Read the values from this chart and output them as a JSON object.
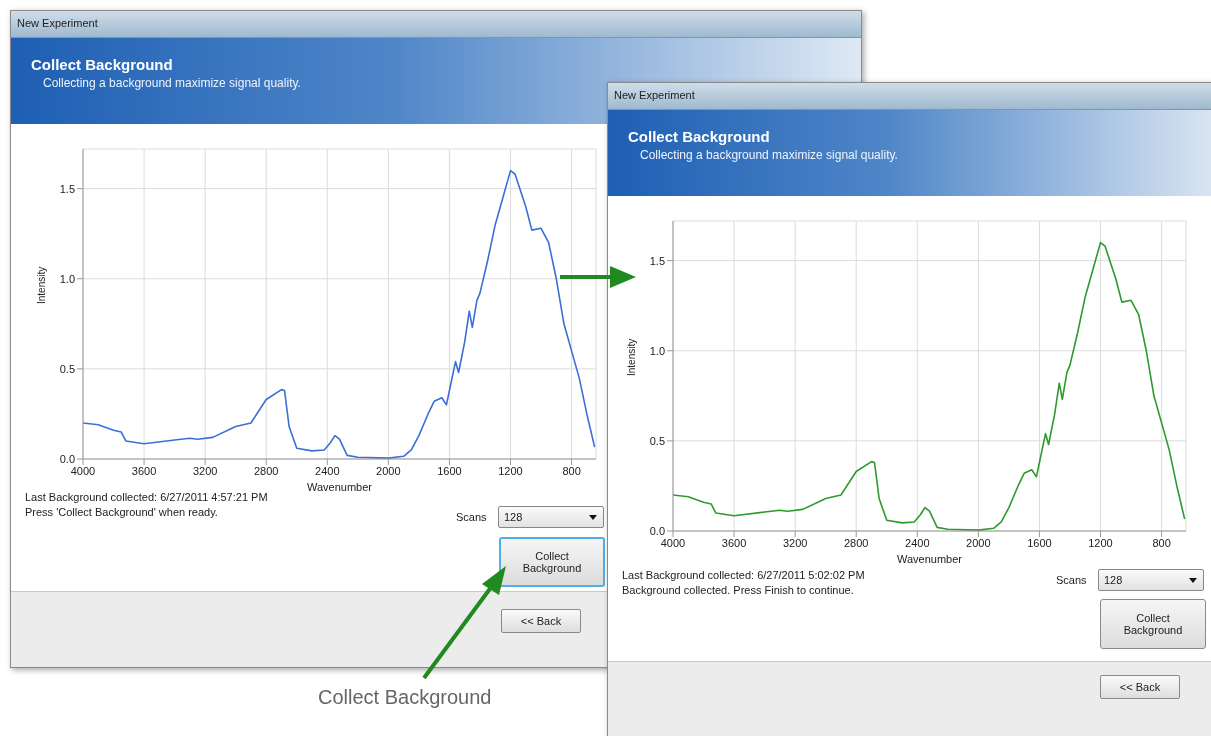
{
  "chart_data": [
    {
      "type": "line",
      "title": "Collect Background",
      "subtitle": "Collecting a background maximize signal quality.",
      "xlabel": "Wavenumber",
      "ylabel": "Intensity",
      "xlim": [
        4000,
        640
      ],
      "ylim": [
        0,
        1.72
      ],
      "xticks": [
        4000,
        3600,
        3200,
        2800,
        2400,
        2000,
        1600,
        1200,
        800
      ],
      "yticks": [
        {
          "value": 0,
          "label": "0.0"
        },
        {
          "value": 0.5,
          "label": "0.5"
        },
        {
          "value": 1,
          "label": "1.0"
        },
        {
          "value": 1.5,
          "label": "1.5"
        }
      ],
      "grid": true,
      "annotations": [
        "New Experiment",
        "Last Background collected: 6/27/2011 4:57:21 PM",
        "Press 'Collect Background' when ready.",
        "Scans",
        "128",
        "Collect Background",
        "<< Back",
        "Collect Background"
      ],
      "x": [
        4000,
        3900,
        3800,
        3750,
        3720,
        3600,
        3400,
        3300,
        3250,
        3150,
        3000,
        2900,
        2800,
        2700,
        2680,
        2650,
        2600,
        2500,
        2420,
        2380,
        2350,
        2320,
        2270,
        2200,
        2000,
        1900,
        1850,
        1800,
        1740,
        1700,
        1650,
        1620,
        1600,
        1560,
        1540,
        1500,
        1470,
        1450,
        1420,
        1400,
        1350,
        1300,
        1250,
        1200,
        1170,
        1100,
        1060,
        1000,
        950,
        900,
        850,
        800,
        750,
        700,
        650
      ],
      "series": [
        {
          "color": "#3b6fd6",
          "values": [
            0.2,
            0.19,
            0.16,
            0.15,
            0.1,
            0.085,
            0.105,
            0.115,
            0.11,
            0.12,
            0.18,
            0.2,
            0.33,
            0.385,
            0.38,
            0.18,
            0.06,
            0.045,
            0.05,
            0.09,
            0.13,
            0.11,
            0.02,
            0.01,
            0.005,
            0.015,
            0.05,
            0.13,
            0.25,
            0.32,
            0.34,
            0.3,
            0.38,
            0.54,
            0.48,
            0.65,
            0.82,
            0.73,
            0.88,
            0.92,
            1.1,
            1.3,
            1.45,
            1.6,
            1.58,
            1.4,
            1.27,
            1.28,
            1.2,
            1.0,
            0.75,
            0.6,
            0.45,
            0.25,
            0.07
          ]
        }
      ]
    },
    {
      "type": "line",
      "title": "Collect Background",
      "subtitle": "Collecting a background maximize signal quality.",
      "xlabel": "Wavenumber",
      "ylabel": "Intensity",
      "xlim": [
        4000,
        640
      ],
      "ylim": [
        0,
        1.72
      ],
      "xticks": [
        4000,
        3600,
        3200,
        2800,
        2400,
        2000,
        1600,
        1200,
        800
      ],
      "yticks": [
        {
          "value": 0,
          "label": "0.0"
        },
        {
          "value": 0.5,
          "label": "0.5"
        },
        {
          "value": 1,
          "label": "1.0"
        },
        {
          "value": 1.5,
          "label": "1.5"
        }
      ],
      "grid": true,
      "annotations": [
        "New Experiment",
        "Last Background collected: 6/27/2011 5:02:02 PM",
        "Background collected.  Press Finish to continue.",
        "Scans",
        "128",
        "Collect Background",
        "<< Back"
      ],
      "x": [
        4000,
        3900,
        3800,
        3750,
        3720,
        3600,
        3400,
        3300,
        3250,
        3150,
        3000,
        2900,
        2800,
        2700,
        2680,
        2650,
        2600,
        2500,
        2420,
        2380,
        2350,
        2320,
        2270,
        2200,
        2000,
        1900,
        1850,
        1800,
        1740,
        1700,
        1650,
        1620,
        1600,
        1560,
        1540,
        1500,
        1470,
        1450,
        1420,
        1400,
        1350,
        1300,
        1250,
        1200,
        1170,
        1100,
        1060,
        1000,
        950,
        900,
        850,
        800,
        750,
        700,
        650
      ],
      "series": [
        {
          "color": "#2e9a2e",
          "values": [
            0.2,
            0.19,
            0.16,
            0.15,
            0.1,
            0.085,
            0.105,
            0.115,
            0.11,
            0.12,
            0.18,
            0.2,
            0.33,
            0.385,
            0.38,
            0.18,
            0.06,
            0.045,
            0.05,
            0.09,
            0.13,
            0.11,
            0.02,
            0.01,
            0.005,
            0.015,
            0.05,
            0.13,
            0.25,
            0.32,
            0.34,
            0.3,
            0.38,
            0.54,
            0.48,
            0.65,
            0.82,
            0.73,
            0.88,
            0.92,
            1.1,
            1.3,
            1.45,
            1.6,
            1.58,
            1.4,
            1.27,
            1.28,
            1.2,
            1.0,
            0.75,
            0.6,
            0.45,
            0.25,
            0.07
          ]
        }
      ]
    }
  ]
}
